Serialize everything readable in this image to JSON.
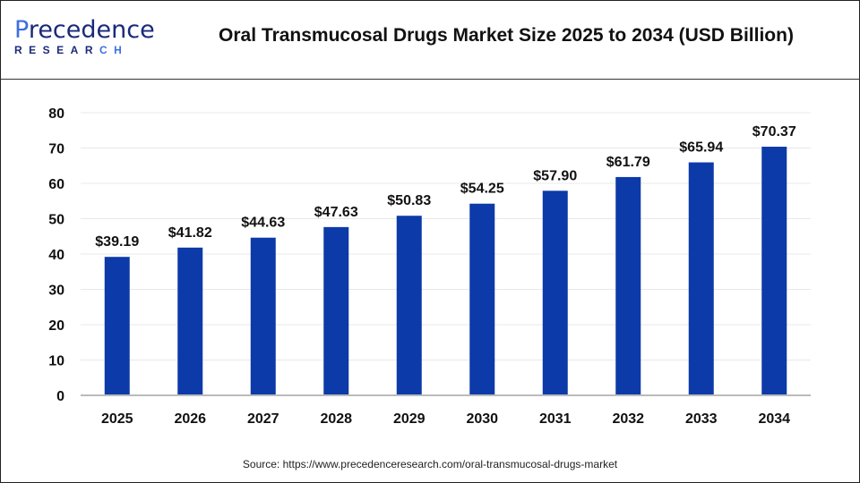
{
  "logo": {
    "text_top": "Precedence",
    "text_bottom": "RESEARCH"
  },
  "title": "Oral Transmucosal Drugs Market Size 2025 to 2034 (USD Billion)",
  "source": "Source: https://www.precedenceresearch.com/oral-transmucosal-drugs-market",
  "colors": {
    "bar": "#0d3aa9",
    "grid": "#e8e8e8",
    "axis": "#bbbbbb"
  },
  "chart_data": {
    "type": "bar",
    "title": "Oral Transmucosal Drugs Market Size 2025 to 2034 (USD Billion)",
    "categories": [
      "2025",
      "2026",
      "2027",
      "2028",
      "2029",
      "2030",
      "2031",
      "2032",
      "2033",
      "2034"
    ],
    "values": [
      39.19,
      41.82,
      44.63,
      47.63,
      50.83,
      54.25,
      57.9,
      61.79,
      65.94,
      70.37
    ],
    "data_labels": [
      "$39.19",
      "$41.82",
      "$44.63",
      "$47.63",
      "$50.83",
      "$54.25",
      "$57.90",
      "$61.79",
      "$65.94",
      "$70.37"
    ],
    "ylim": [
      0,
      80
    ],
    "yticks": [
      0,
      10,
      20,
      30,
      40,
      50,
      60,
      70,
      80
    ],
    "grid": true,
    "xlabel": "",
    "ylabel": ""
  }
}
